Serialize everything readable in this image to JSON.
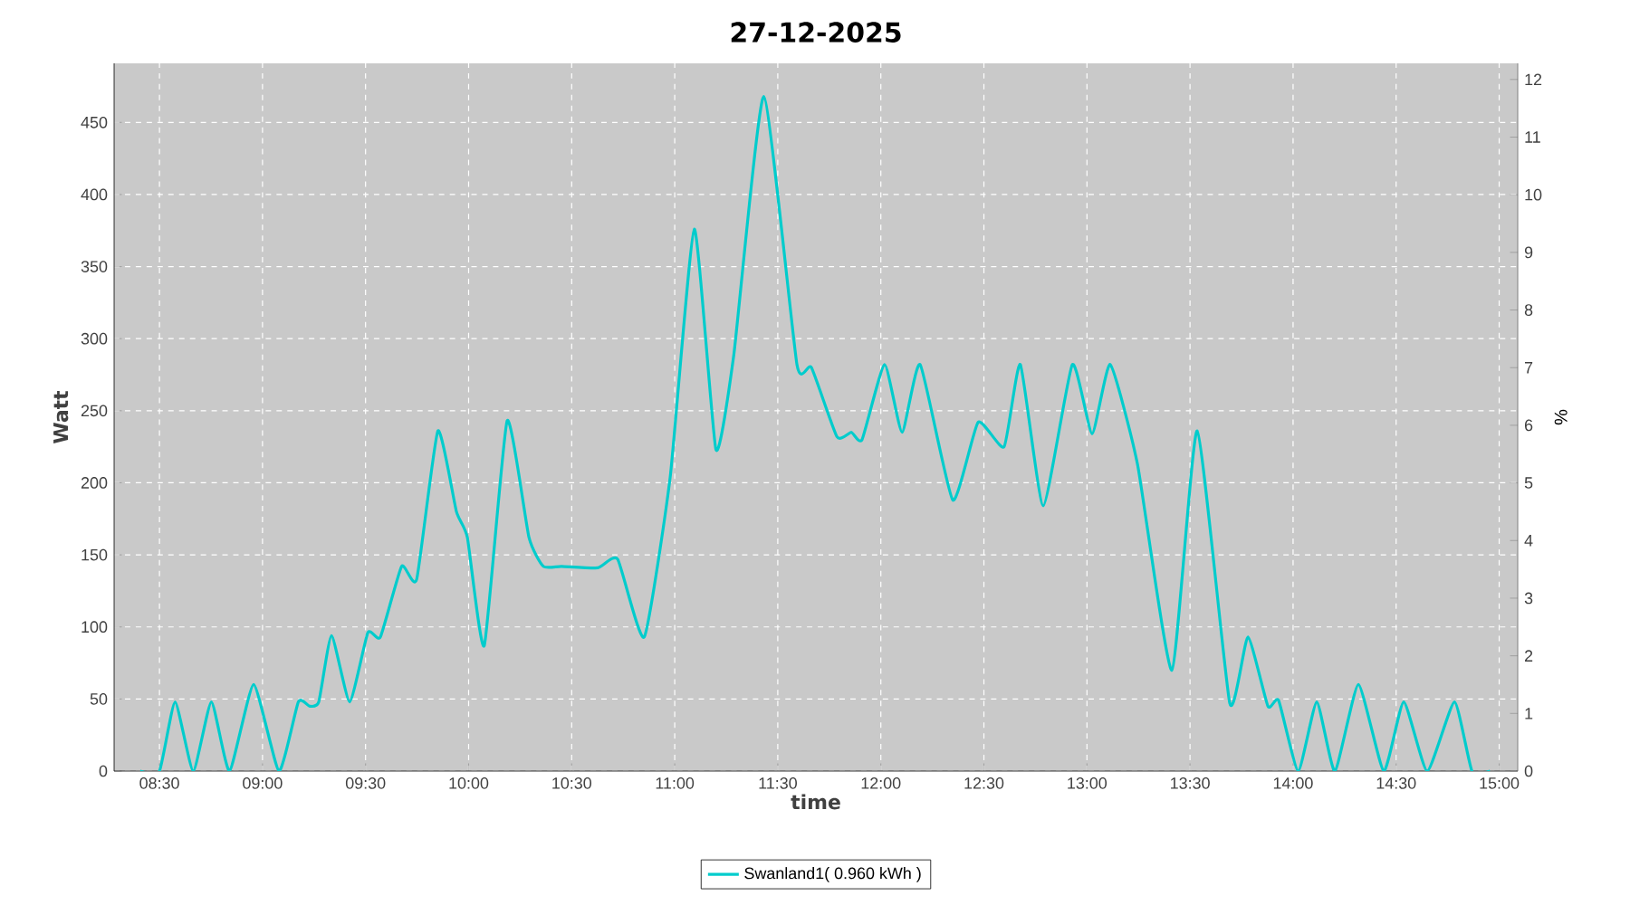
{
  "chart_data": {
    "type": "line",
    "title": "27-12-2025",
    "xlabel": "time",
    "ylabel": "Watt",
    "y2label": "%",
    "x": [
      8.406,
      8.5,
      8.576,
      8.664,
      8.752,
      8.84,
      8.957,
      9.08,
      9.174,
      9.229,
      9.273,
      9.335,
      9.423,
      9.511,
      9.572,
      9.675,
      9.748,
      9.851,
      9.941,
      9.994,
      10.076,
      10.187,
      10.293,
      10.363,
      10.451,
      10.627,
      10.723,
      10.852,
      10.978,
      11.095,
      11.2,
      11.286,
      11.432,
      11.593,
      11.663,
      11.787,
      11.857,
      11.909,
      12.018,
      12.103,
      12.191,
      12.349,
      12.472,
      12.598,
      12.677,
      12.788,
      12.929,
      13.025,
      13.113,
      13.245,
      13.412,
      13.535,
      13.693,
      13.781,
      13.878,
      13.93,
      14.025,
      14.115,
      14.203,
      14.317,
      14.44,
      14.537,
      14.651,
      14.783,
      14.868,
      14.956
    ],
    "series": [
      {
        "name": "Swanland1( 0.960 kWh )",
        "color": "#00cccc",
        "values": [
          0,
          0,
          48,
          0,
          48,
          0,
          60,
          0,
          48,
          45,
          48,
          94,
          48,
          96,
          93,
          142,
          133,
          236,
          180,
          162,
          87,
          243,
          162,
          142,
          142,
          141,
          147,
          93,
          204,
          376,
          223,
          288,
          468,
          282,
          280,
          232,
          235,
          230,
          282,
          235,
          282,
          188,
          242,
          225,
          282,
          184,
          282,
          234,
          282,
          213,
          70,
          236,
          47,
          93,
          45,
          49,
          0,
          48,
          0,
          60,
          0,
          48,
          0,
          48,
          0,
          0
        ]
      }
    ],
    "xlim": [
      8.28,
      15.09
    ],
    "ylim": [
      0,
      491
    ],
    "y2lim": [
      0,
      12.28
    ],
    "xticks": [
      {
        "value": 8.5,
        "label": "08:30"
      },
      {
        "value": 9,
        "label": "09:00"
      },
      {
        "value": 9.5,
        "label": "09:30"
      },
      {
        "value": 10,
        "label": "10:00"
      },
      {
        "value": 10.5,
        "label": "10:30"
      },
      {
        "value": 11,
        "label": "11:00"
      },
      {
        "value": 11.5,
        "label": "11:30"
      },
      {
        "value": 12,
        "label": "12:00"
      },
      {
        "value": 12.5,
        "label": "12:30"
      },
      {
        "value": 13,
        "label": "13:00"
      },
      {
        "value": 13.5,
        "label": "13:30"
      },
      {
        "value": 14,
        "label": "14:00"
      },
      {
        "value": 14.5,
        "label": "14:30"
      },
      {
        "value": 15,
        "label": "15:00"
      }
    ],
    "yticks": [
      0,
      50,
      100,
      150,
      200,
      250,
      300,
      350,
      400,
      450
    ],
    "y2ticks": [
      0,
      1,
      2,
      3,
      4,
      5,
      6,
      7,
      8,
      9,
      10,
      11,
      12
    ],
    "grid": true,
    "legend": "bottom",
    "line_style": "solid"
  }
}
